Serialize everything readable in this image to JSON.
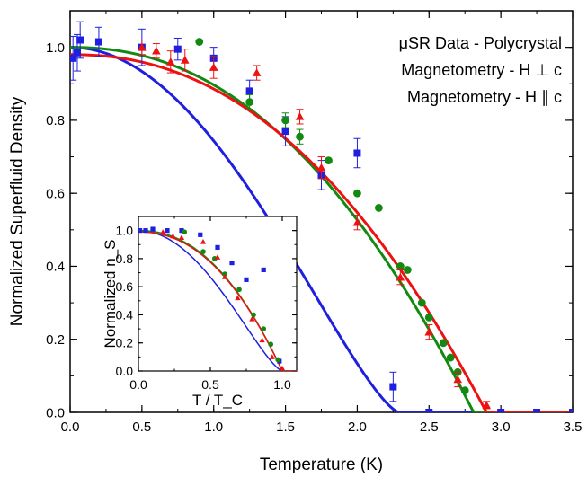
{
  "chart_data": [
    {
      "type": "scatter",
      "xlabel": "Temperature (K)",
      "ylabel": "Normalized Superfluid Density",
      "xlim": [
        0,
        3.5
      ],
      "ylim": [
        0,
        1.1
      ],
      "xticks": [
        "0.0",
        "0.5",
        "1.0",
        "1.5",
        "2.0",
        "2.5",
        "3.0",
        "3.5"
      ],
      "yticks": [
        "0.0",
        "0.2",
        "0.4",
        "0.6",
        "0.8",
        "1.0"
      ],
      "legend_position": "top-right",
      "series": [
        {
          "name": "μSR Data - Polycrystal",
          "color": "#1f1fe0",
          "marker": "square",
          "points": [
            {
              "x": 0.02,
              "y": 0.97,
              "err": 0.06
            },
            {
              "x": 0.05,
              "y": 0.985,
              "err": 0.05
            },
            {
              "x": 0.07,
              "y": 1.02,
              "err": 0.05
            },
            {
              "x": 0.2,
              "y": 1.015,
              "err": 0.04
            },
            {
              "x": 0.5,
              "y": 1.0,
              "err": 0.05
            },
            {
              "x": 0.75,
              "y": 0.995,
              "err": 0.03
            },
            {
              "x": 1.0,
              "y": 0.97,
              "err": 0.03
            },
            {
              "x": 1.25,
              "y": 0.88,
              "err": 0.03
            },
            {
              "x": 1.5,
              "y": 0.77,
              "err": 0.04
            },
            {
              "x": 1.75,
              "y": 0.65,
              "err": 0.04
            },
            {
              "x": 2.0,
              "y": 0.71,
              "err": 0.04
            },
            {
              "x": 2.25,
              "y": 0.07,
              "err": 0.04
            },
            {
              "x": 2.5,
              "y": 0.0,
              "err": 0.0
            },
            {
              "x": 3.0,
              "y": 0.0,
              "err": 0.0
            },
            {
              "x": 3.25,
              "y": 0.0,
              "err": 0.0
            },
            {
              "x": 3.5,
              "y": 0.0,
              "err": 0.0
            }
          ],
          "fit": {
            "tc": 2.29,
            "amp": 1.0,
            "p": 2.0,
            "q": 1.4
          }
        },
        {
          "name": "Magnetometry - H ⊥ c",
          "color": "#128a12",
          "marker": "circle",
          "points": [
            {
              "x": 0.9,
              "y": 1.015,
              "err": 0.0
            },
            {
              "x": 1.25,
              "y": 0.85,
              "err": 0.02
            },
            {
              "x": 1.5,
              "y": 0.8,
              "err": 0.02
            },
            {
              "x": 1.6,
              "y": 0.755,
              "err": 0.02
            },
            {
              "x": 1.8,
              "y": 0.69,
              "err": 0.0
            },
            {
              "x": 2.0,
              "y": 0.6,
              "err": 0.0
            },
            {
              "x": 2.15,
              "y": 0.56,
              "err": 0.0
            },
            {
              "x": 2.3,
              "y": 0.4,
              "err": 0.0
            },
            {
              "x": 2.35,
              "y": 0.39,
              "err": 0.0
            },
            {
              "x": 2.45,
              "y": 0.3,
              "err": 0.0
            },
            {
              "x": 2.5,
              "y": 0.26,
              "err": 0.0
            },
            {
              "x": 2.6,
              "y": 0.19,
              "err": 0.0
            },
            {
              "x": 2.65,
              "y": 0.15,
              "err": 0.0
            },
            {
              "x": 2.7,
              "y": 0.11,
              "err": 0.0
            },
            {
              "x": 2.75,
              "y": 0.06,
              "err": 0.0
            }
          ],
          "fit": {
            "tc": 2.81,
            "amp": 1.0,
            "p": 2.2,
            "q": 1.0
          }
        },
        {
          "name": "Magnetometry - H ∥ c",
          "color": "#ee1111",
          "marker": "triangle",
          "points": [
            {
              "x": 0.5,
              "y": 1.0,
              "err": 0.02
            },
            {
              "x": 0.6,
              "y": 0.99,
              "err": 0.02
            },
            {
              "x": 0.7,
              "y": 0.96,
              "err": 0.03
            },
            {
              "x": 0.8,
              "y": 0.965,
              "err": 0.03
            },
            {
              "x": 1.0,
              "y": 0.945,
              "err": 0.03
            },
            {
              "x": 1.3,
              "y": 0.93,
              "err": 0.02
            },
            {
              "x": 1.6,
              "y": 0.81,
              "err": 0.02
            },
            {
              "x": 1.75,
              "y": 0.67,
              "err": 0.03
            },
            {
              "x": 2.0,
              "y": 0.52,
              "err": 0.02
            },
            {
              "x": 2.3,
              "y": 0.37,
              "err": 0.02
            },
            {
              "x": 2.5,
              "y": 0.22,
              "err": 0.02
            },
            {
              "x": 2.7,
              "y": 0.09,
              "err": 0.02
            },
            {
              "x": 2.9,
              "y": 0.02,
              "err": 0.01
            }
          ],
          "fit": {
            "tc": 2.9,
            "amp": 0.98,
            "p": 2.2,
            "q": 1.0
          }
        }
      ]
    },
    {
      "type": "scatter",
      "xlabel": "T / T_C",
      "ylabel": "Normalized n_S",
      "xlim": [
        0,
        1.1
      ],
      "ylim": [
        0,
        1.1
      ],
      "xticks": [
        "0.0",
        "0.5",
        "1.0"
      ],
      "yticks": [
        "0.0",
        "0.2",
        "0.4",
        "0.6",
        "0.8",
        "1.0"
      ],
      "series": [
        {
          "name": "μSR Data - Polycrystal",
          "color": "#1f1fe0",
          "marker": "square",
          "points": [
            {
              "x": 0.01,
              "y": 1.0
            },
            {
              "x": 0.05,
              "y": 1.0
            },
            {
              "x": 0.1,
              "y": 1.01
            },
            {
              "x": 0.2,
              "y": 1.0
            },
            {
              "x": 0.3,
              "y": 1.0
            },
            {
              "x": 0.43,
              "y": 0.97
            },
            {
              "x": 0.55,
              "y": 0.88
            },
            {
              "x": 0.65,
              "y": 0.77
            },
            {
              "x": 0.75,
              "y": 0.65
            },
            {
              "x": 0.87,
              "y": 0.72
            },
            {
              "x": 0.98,
              "y": 0.07
            }
          ],
          "fit": {
            "tc": 1.0,
            "amp": 1.0,
            "p": 2.0,
            "q": 1.4
          }
        },
        {
          "name": "Magnetometry - H ⊥ c",
          "color": "#128a12",
          "marker": "circle",
          "points": [
            {
              "x": 0.32,
              "y": 0.99
            },
            {
              "x": 0.45,
              "y": 0.85
            },
            {
              "x": 0.53,
              "y": 0.8
            },
            {
              "x": 0.6,
              "y": 0.69
            },
            {
              "x": 0.7,
              "y": 0.58
            },
            {
              "x": 0.8,
              "y": 0.4
            },
            {
              "x": 0.87,
              "y": 0.3
            },
            {
              "x": 0.92,
              "y": 0.19
            },
            {
              "x": 0.97,
              "y": 0.08
            }
          ],
          "fit": {
            "tc": 1.0,
            "amp": 1.0,
            "p": 2.2,
            "q": 1.0
          }
        },
        {
          "name": "Magnetometry - H ∥ c",
          "color": "#ee1111",
          "marker": "triangle",
          "points": [
            {
              "x": 0.17,
              "y": 0.99
            },
            {
              "x": 0.24,
              "y": 0.96
            },
            {
              "x": 0.3,
              "y": 0.95
            },
            {
              "x": 0.45,
              "y": 0.92
            },
            {
              "x": 0.55,
              "y": 0.81
            },
            {
              "x": 0.6,
              "y": 0.67
            },
            {
              "x": 0.69,
              "y": 0.52
            },
            {
              "x": 0.79,
              "y": 0.37
            },
            {
              "x": 0.86,
              "y": 0.22
            },
            {
              "x": 0.93,
              "y": 0.1
            },
            {
              "x": 1.0,
              "y": 0.02
            }
          ],
          "fit": {
            "tc": 1.0,
            "amp": 0.99,
            "p": 2.2,
            "q": 1.0
          }
        }
      ]
    }
  ]
}
